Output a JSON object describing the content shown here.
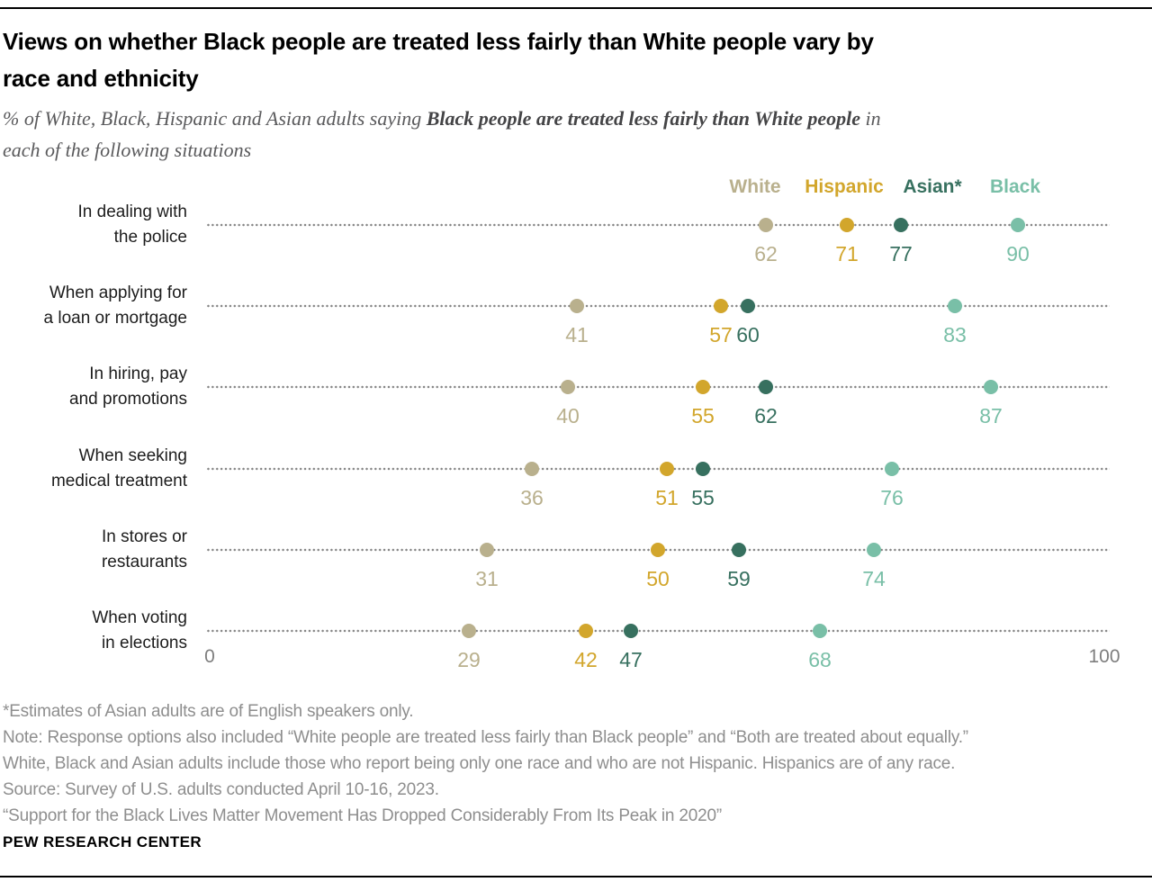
{
  "header": {
    "title": "Views on whether Black people are treated less fairly than White people vary by\nrace and ethnicity",
    "subtitle_prefix": "% of White, Black, Hispanic and Asian adults saying ",
    "subtitle_bold": "Black people are treated less fairly than White people",
    "subtitle_suffix": " in\neach of the following situations"
  },
  "chart_data": {
    "type": "scatter",
    "subtype": "dot-plot",
    "categories": [
      "In dealing with\nthe police",
      "When applying for\na loan or mortgage",
      "In hiring, pay\nand promotions",
      "When seeking\nmedical treatment",
      "In stores or\nrestaurants",
      "When voting\nin elections"
    ],
    "series": [
      {
        "name": "White",
        "color": "#b9b08d",
        "values": [
          62,
          41,
          40,
          36,
          31,
          29
        ]
      },
      {
        "name": "Hispanic",
        "color": "#d2a62c",
        "values": [
          71,
          57,
          55,
          51,
          50,
          42
        ]
      },
      {
        "name": "Asian*",
        "color": "#37705f",
        "values": [
          77,
          60,
          62,
          55,
          59,
          47
        ]
      },
      {
        "name": "Black",
        "color": "#79bfa7",
        "values": [
          90,
          83,
          87,
          76,
          74,
          68
        ]
      }
    ],
    "xlim": [
      0,
      100
    ],
    "axis_ticks": [
      "0",
      "100"
    ],
    "grid": "dotted-leader-lines",
    "legend_position": "top-right-above-first-row"
  },
  "footer": {
    "notes": [
      "*Estimates of Asian adults are of English speakers only.",
      "Note: Response options also included “White people are treated less fairly than Black people” and “Both are treated about equally.”",
      "White, Black and Asian adults include those who report being only one race and who are not Hispanic. Hispanics are of any race.",
      "Source: Survey of U.S. adults conducted April 10-16, 2023.",
      "“Support for the Black Lives Matter Movement Has Dropped Considerably From Its Peak in 2020”"
    ],
    "brand": "PEW RESEARCH CENTER"
  }
}
